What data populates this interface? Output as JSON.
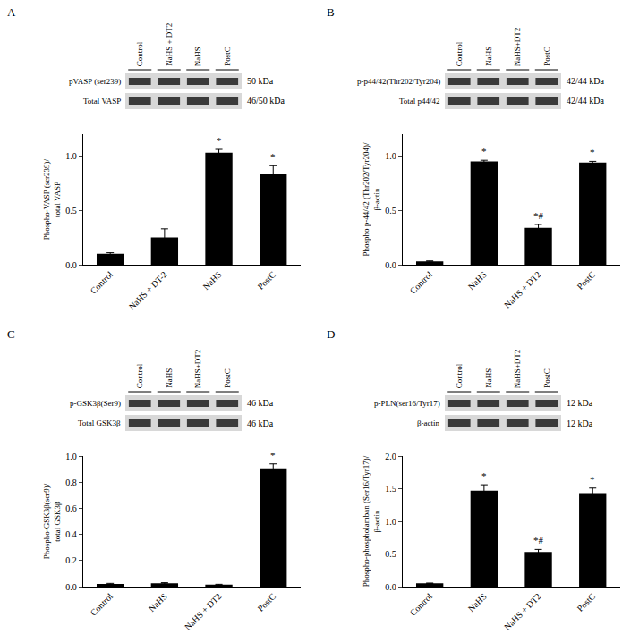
{
  "chart_data": [
    {
      "type": "bar",
      "panel": "A",
      "color": "#000000",
      "categories": [
        "Control",
        "NaHS + DT-2",
        "NaHS",
        "PostC"
      ],
      "values": [
        0.1,
        0.25,
        1.03,
        0.83
      ],
      "error": [
        0.01,
        0.08,
        0.03,
        0.08
      ],
      "y_label": "Phospho-VASP (ser239)/\ntotal VASP",
      "ylim": [
        0,
        1.2
      ],
      "yticks": [
        {
          "value": 0,
          "label": "0.0"
        },
        {
          "value": 0.5,
          "label": "0.5"
        },
        {
          "value": 1,
          "label": "1.0"
        }
      ],
      "marks": [
        {
          "category": "NaHS",
          "text": "*"
        },
        {
          "category": "PostC",
          "text": "*"
        }
      ],
      "blot": {
        "lanes": [
          "Control",
          "NaHS + DT2",
          "NaHS",
          "PostC"
        ],
        "rows": [
          {
            "label": "pVASP (ser239)",
            "size": "50 kDa"
          },
          {
            "label": "Total VASP",
            "size": "46/50 kDa"
          }
        ]
      }
    },
    {
      "type": "bar",
      "panel": "B",
      "color": "#000000",
      "categories": [
        "Control",
        "NaHS",
        "NaHS + DT2",
        "PostC"
      ],
      "values": [
        0.03,
        0.95,
        0.34,
        0.94
      ],
      "error": [
        0.005,
        0.01,
        0.03,
        0.01
      ],
      "y_label": "Phospho p-44/42 (Thr202/Tyr204)/\nβ-actin",
      "ylim": [
        0,
        1.2
      ],
      "yticks": [
        {
          "value": 0,
          "label": "0.0"
        },
        {
          "value": 0.5,
          "label": "0.5"
        },
        {
          "value": 1,
          "label": "1.0"
        }
      ],
      "marks": [
        {
          "category": "NaHS",
          "text": "*"
        },
        {
          "category": "NaHS + DT2",
          "text": "*#"
        },
        {
          "category": "PostC",
          "text": "*"
        }
      ],
      "blot": {
        "lanes": [
          "Control",
          "NaHS",
          "NaHS+DT2",
          "PostC"
        ],
        "rows": [
          {
            "label": "p-p44/42(Thr202/Tyr204)",
            "size": "42/44 kDa"
          },
          {
            "label": "Total p44/42",
            "size": "42/44 kDa"
          }
        ]
      }
    },
    {
      "type": "bar",
      "panel": "C",
      "color": "#000000",
      "categories": [
        "Control",
        "NaHS",
        "NaHS + DT2",
        "PostC"
      ],
      "values": [
        0.02,
        0.025,
        0.015,
        0.905
      ],
      "error": [
        0.005,
        0.005,
        0.003,
        0.035
      ],
      "y_label": "Phospho-GSK3β(ser9)/\ntotal GSK3β",
      "ylim": [
        0,
        1.0
      ],
      "yticks": [
        {
          "value": 0,
          "label": "0.0"
        },
        {
          "value": 0.2,
          "label": "0.2"
        },
        {
          "value": 0.4,
          "label": "0.4"
        },
        {
          "value": 0.6,
          "label": "0.6"
        },
        {
          "value": 0.8,
          "label": "0.8"
        },
        {
          "value": 1,
          "label": "1.0"
        }
      ],
      "marks": [
        {
          "category": "PostC",
          "text": "*"
        }
      ],
      "blot": {
        "lanes": [
          "Control",
          "NaHS",
          "NaHS+DT2",
          "PostC"
        ],
        "rows": [
          {
            "label": "p-GSK3β(Ser9)",
            "size": "46 kDa"
          },
          {
            "label": "Total GSK3β",
            "size": "46 kDa"
          }
        ]
      }
    },
    {
      "type": "bar",
      "panel": "D",
      "color": "#000000",
      "categories": [
        "Control",
        "NaHS",
        "NaHS + DT2",
        "PostC"
      ],
      "values": [
        0.05,
        1.47,
        0.53,
        1.43
      ],
      "error": [
        0.005,
        0.09,
        0.04,
        0.08
      ],
      "y_label": "Phospho-phospholamban (Ser16/Tyr17)/\nβ-actin",
      "ylim": [
        0,
        2.0
      ],
      "yticks": [
        {
          "value": 0,
          "label": "0.0"
        },
        {
          "value": 0.5,
          "label": "0.5"
        },
        {
          "value": 1,
          "label": "1.0"
        },
        {
          "value": 1.5,
          "label": "1.5"
        },
        {
          "value": 2,
          "label": "2.0"
        }
      ],
      "marks": [
        {
          "category": "NaHS",
          "text": "*"
        },
        {
          "category": "NaHS + DT2",
          "text": "*#"
        },
        {
          "category": "PostC",
          "text": "*"
        }
      ],
      "blot": {
        "lanes": [
          "Control",
          "NaHS",
          "NaHS+DT2",
          "PostC"
        ],
        "rows": [
          {
            "label": "p-PLN(ser16/Tyr17)",
            "size": "12 kDa"
          },
          {
            "label": "β-actin",
            "size": "12 kDa"
          }
        ]
      }
    }
  ]
}
